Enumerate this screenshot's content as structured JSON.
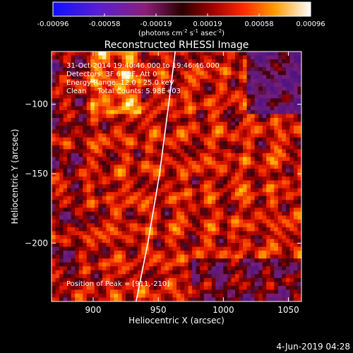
{
  "chart_data": {
    "type": "heatmap",
    "title": "Reconstructed RHESSI Image",
    "xlabel": "Heliocentric X (arcsec)",
    "ylabel": "Heliocentric Y (arcsec)",
    "x_ticks": [
      900,
      950,
      1000,
      1050
    ],
    "y_ticks": [
      -100,
      -150,
      -200
    ],
    "xlim": [
      868,
      1060
    ],
    "ylim": [
      -242,
      -62
    ],
    "colorbar": {
      "ticks": [
        "-0.00096",
        "-0.00058",
        "-0.00019",
        "0.00019",
        "0.00058",
        "0.00096"
      ],
      "unit": "(photons cm",
      "unit_sup1": "-2",
      "unit_mid": " s",
      "unit_sup2": "-1",
      "unit_mid2": " asec",
      "unit_sup3": "-2",
      "unit_end": ")",
      "range": [
        -0.00096,
        0.00096
      ]
    },
    "annotations": {
      "line1": "31-Oct-2014 19:40:46.000 to 19:46:46.000",
      "line2": "Detectors: 3F 6F 9F, Att 0",
      "line3": "Energy Range: 12.0 - 25.0 keV",
      "line4": "Clean     Total Counts: 5.98E+03",
      "peak": "Position of Peak = [911,-210]"
    },
    "limb": [
      [
        963,
        -62
      ],
      [
        958,
        -100
      ],
      [
        951,
        -150
      ],
      [
        942,
        -200
      ],
      [
        933,
        -242
      ]
    ],
    "peak_position": [
      911,
      -210
    ]
  },
  "footer": {
    "date": "4-Jun-2019 04:28"
  }
}
